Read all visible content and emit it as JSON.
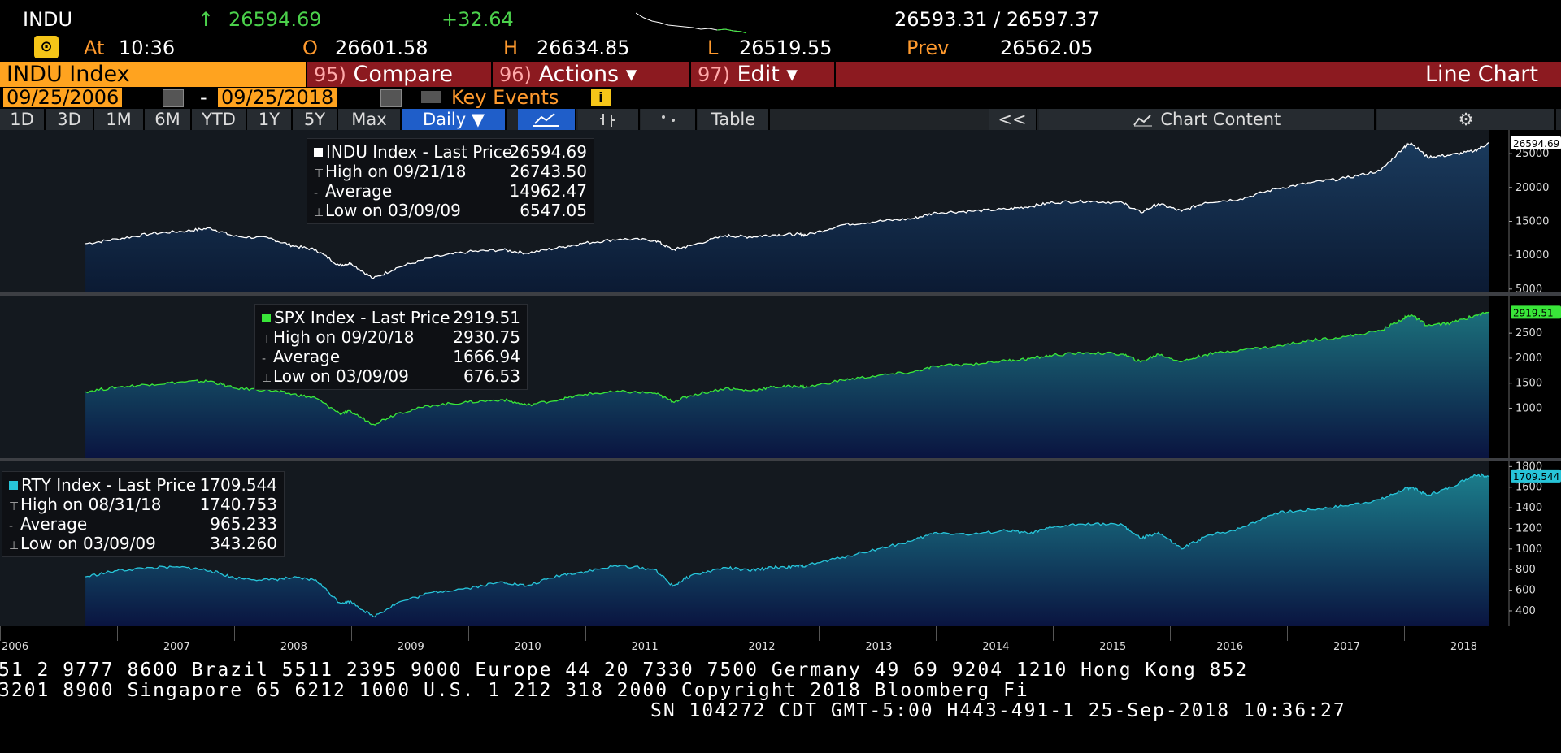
{
  "quote": {
    "ticker": "INDU",
    "arrow": "↑",
    "last": "26594.69",
    "change": "+32.64",
    "bid_ask": "26593.31 / 26597.37",
    "at_label": "At",
    "time": "10:36",
    "open_label": "O",
    "open": "26601.58",
    "high_label": "H",
    "high": "26634.85",
    "low_label": "L",
    "low": "26519.55",
    "prev_label": "Prev",
    "prev": "26562.05"
  },
  "header": {
    "security": "INDU Index",
    "compare_num": "95)",
    "compare": "Compare",
    "actions_num": "96)",
    "actions": "Actions",
    "edit_num": "97)",
    "edit": "Edit",
    "chart_type": "Line Chart",
    "dropdown_glyph": "▾"
  },
  "dates": {
    "start": "09/25/2006",
    "dash": "-",
    "end": "09/25/2018",
    "key_events": "Key Events",
    "info_glyph": "i"
  },
  "toolbar": {
    "periods": [
      "1D",
      "3D",
      "1M",
      "6M",
      "YTD",
      "1Y",
      "5Y",
      "Max"
    ],
    "frequency": "Daily ▼",
    "table": "Table",
    "collapse": "<<",
    "chart_content": "Chart Content",
    "settings_glyph": "⚙"
  },
  "colors": {
    "indu": "#ffffff",
    "spx": "#39e639",
    "rty": "#27c4d8",
    "orange": "#ffa31f",
    "menu_red": "#8c1a20",
    "selected_blue": "#1f5ec9"
  },
  "chart_data": [
    {
      "type": "area",
      "name": "INDU Index",
      "legend": {
        "title": "INDU Index - Last Price",
        "last": "26594.69",
        "high_label": "High on 09/21/18",
        "high": "26743.50",
        "avg_label": "Average",
        "avg": "14962.47",
        "low_label": "Low on 03/09/09",
        "low": "6547.05"
      },
      "ylim": [
        4500,
        28500
      ],
      "yticks": [
        5000,
        10000,
        15000,
        20000,
        25000
      ],
      "last_tag": "26594.69",
      "x": [
        2006.73,
        2007.0,
        2007.3,
        2007.6,
        2007.8,
        2008.0,
        2008.3,
        2008.5,
        2008.7,
        2008.9,
        2009.0,
        2009.19,
        2009.4,
        2009.7,
        2010.0,
        2010.3,
        2010.5,
        2010.8,
        2011.0,
        2011.3,
        2011.6,
        2011.75,
        2011.9,
        2012.2,
        2012.4,
        2012.6,
        2012.8,
        2012.9,
        2013.2,
        2013.5,
        2013.8,
        2014.0,
        2014.3,
        2014.6,
        2014.8,
        2015.0,
        2015.3,
        2015.6,
        2015.75,
        2015.9,
        2016.1,
        2016.3,
        2016.6,
        2016.9,
        2017.2,
        2017.5,
        2017.8,
        2018.0,
        2018.06,
        2018.2,
        2018.4,
        2018.6,
        2018.73
      ],
      "y": [
        11700,
        12400,
        13200,
        13600,
        14000,
        12800,
        12500,
        11400,
        10800,
        8500,
        8800,
        6547,
        8200,
        9700,
        10500,
        10800,
        10300,
        11200,
        11800,
        12400,
        12200,
        10800,
        11400,
        12900,
        12700,
        13000,
        13100,
        13000,
        14500,
        15000,
        15400,
        16300,
        16500,
        16800,
        17200,
        17800,
        18000,
        17700,
        16300,
        17600,
        16500,
        17800,
        18300,
        19800,
        20700,
        21400,
        22500,
        26000,
        26600,
        24500,
        24800,
        25400,
        26594
      ]
    },
    {
      "type": "area",
      "name": "SPX Index",
      "legend": {
        "title": "SPX Index - Last Price",
        "last": "2919.51",
        "high_label": "High on 09/20/18",
        "high": "2930.75",
        "avg_label": "Average",
        "avg": "1666.94",
        "low_label": "Low on 03/09/09",
        "low": "676.53"
      },
      "ylim": [
        0,
        3250
      ],
      "yticks": [
        1000,
        1500,
        2000,
        2500
      ],
      "last_tag": "2919.51",
      "x": [
        2006.73,
        2007.0,
        2007.3,
        2007.6,
        2007.8,
        2008.0,
        2008.3,
        2008.5,
        2008.7,
        2008.9,
        2009.0,
        2009.19,
        2009.4,
        2009.7,
        2010.0,
        2010.3,
        2010.5,
        2010.8,
        2011.0,
        2011.3,
        2011.6,
        2011.75,
        2011.9,
        2012.2,
        2012.4,
        2012.6,
        2012.8,
        2012.9,
        2013.2,
        2013.5,
        2013.8,
        2014.0,
        2014.3,
        2014.6,
        2014.8,
        2015.0,
        2015.3,
        2015.6,
        2015.75,
        2015.9,
        2016.1,
        2016.3,
        2016.6,
        2016.9,
        2017.2,
        2017.5,
        2017.8,
        2018.0,
        2018.06,
        2018.2,
        2018.4,
        2018.6,
        2018.73
      ],
      "y": [
        1330,
        1420,
        1480,
        1530,
        1540,
        1400,
        1360,
        1280,
        1200,
        900,
        930,
        677,
        900,
        1060,
        1120,
        1170,
        1060,
        1180,
        1280,
        1330,
        1300,
        1130,
        1250,
        1400,
        1350,
        1420,
        1440,
        1420,
        1560,
        1650,
        1720,
        1840,
        1880,
        1950,
        1990,
        2060,
        2110,
        2080,
        1920,
        2080,
        1930,
        2070,
        2170,
        2230,
        2360,
        2430,
        2550,
        2800,
        2870,
        2650,
        2700,
        2850,
        2919
      ]
    },
    {
      "type": "area",
      "name": "RTY Index",
      "legend": {
        "title": "RTY Index - Last Price",
        "last": "1709.544",
        "high_label": "High on 08/31/18",
        "high": "1740.753",
        "avg_label": "Average",
        "avg": "965.233",
        "low_label": "Low on 03/09/09",
        "low": "343.260"
      },
      "ylim": [
        250,
        1850
      ],
      "yticks": [
        400,
        600,
        800,
        1000,
        1200,
        1400,
        1600,
        1800
      ],
      "last_tag": "1709.544",
      "x": [
        2006.73,
        2007.0,
        2007.3,
        2007.6,
        2007.8,
        2008.0,
        2008.3,
        2008.5,
        2008.7,
        2008.9,
        2009.0,
        2009.19,
        2009.4,
        2009.7,
        2010.0,
        2010.3,
        2010.5,
        2010.8,
        2011.0,
        2011.3,
        2011.6,
        2011.75,
        2011.9,
        2012.2,
        2012.4,
        2012.6,
        2012.8,
        2012.9,
        2013.2,
        2013.5,
        2013.8,
        2014.0,
        2014.3,
        2014.6,
        2014.8,
        2015.0,
        2015.3,
        2015.6,
        2015.75,
        2015.9,
        2016.1,
        2016.3,
        2016.6,
        2016.9,
        2017.2,
        2017.5,
        2017.8,
        2018.0,
        2018.06,
        2018.2,
        2018.4,
        2018.6,
        2018.73
      ],
      "y": [
        730,
        790,
        820,
        820,
        790,
        720,
        700,
        720,
        700,
        480,
        490,
        343,
        480,
        580,
        620,
        680,
        640,
        750,
        780,
        840,
        800,
        640,
        740,
        820,
        790,
        820,
        830,
        840,
        920,
        1000,
        1080,
        1160,
        1140,
        1180,
        1150,
        1210,
        1250,
        1230,
        1100,
        1160,
        1000,
        1120,
        1200,
        1350,
        1380,
        1420,
        1480,
        1580,
        1600,
        1520,
        1600,
        1720,
        1709
      ]
    }
  ],
  "xaxis": {
    "labels": [
      "2006",
      "2007",
      "2008",
      "2009",
      "2010",
      "2011",
      "2012",
      "2013",
      "2014",
      "2015",
      "2016",
      "2017",
      "2018"
    ]
  },
  "footer": {
    "line1": "51 2 9777 8600 Brazil 5511 2395 9000 Europe 44 20 7330 7500 Germany 49 69 9204 1210 Hong Kong 852",
    "line2": " 3201 8900       Singapore 65 6212 1000       U.S. 1 212 318 2000       Copyright 2018 Bloomberg Fi",
    "line3": "SN 104272 CDT  GMT-5:00 H443-491-1 25-Sep-2018 10:36:27"
  }
}
